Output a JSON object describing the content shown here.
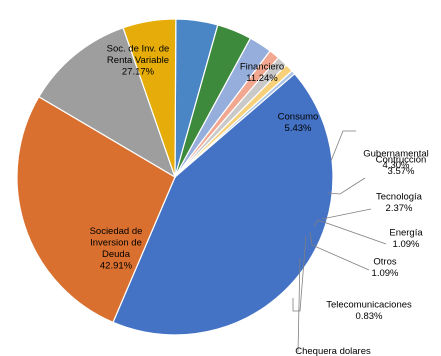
{
  "chart_data": {
    "type": "pie",
    "title": "",
    "start_angle_deg": 360.3,
    "slices": [
      {
        "name": "Gubernamental",
        "value": 4.3,
        "label": "4.30%",
        "color": "#4a86c5",
        "label_name": [
          "Gubernamental"
        ],
        "label_value": "4.30%"
      },
      {
        "name": "Contrucción",
        "value": 3.57,
        "label": "3.57%",
        "color": "#3d8a3d",
        "label_name": [
          "Contrucción"
        ],
        "label_value": "3.57%"
      },
      {
        "name": "Tecnología",
        "value": 2.37,
        "label": "2.37%",
        "color": "#96aedc",
        "label_name": [
          "Tecnología"
        ],
        "label_value": "2.37%"
      },
      {
        "name": "Energía",
        "value": 1.09,
        "label": "1.09%",
        "color": "#f2a890",
        "label_name": [
          "Energía"
        ],
        "label_value": "1.09%"
      },
      {
        "name": "Otros",
        "value": 1.09,
        "label": "1.09%",
        "color": "#c9c9c9",
        "label_name": [
          "Otros"
        ],
        "label_value": "1.09%"
      },
      {
        "name": "Telecomunicaciones",
        "value": 0.83,
        "label": "0.83%",
        "color": "#f7d07a",
        "label_name": [
          "Telecomunicaciones"
        ],
        "label_value": "0.83%"
      },
      {
        "name": "Chequera dolares",
        "value": 0.4,
        "label": "",
        "color": "#a9c4e6",
        "label_name": [
          "Chequera dolares"
        ],
        "label_value": ""
      },
      {
        "name": "Sociedad de Inversion de Deuda",
        "value": 42.91,
        "label": "42.91%",
        "color": "#4472c4",
        "label_name": [
          "Sociedad de",
          "Inversion de",
          "Deuda"
        ],
        "label_value": "42.91%"
      },
      {
        "name": "Soc. de Inv. de Renta Variable",
        "value": 27.17,
        "label": "27.17%",
        "color": "#d9702f",
        "label_name": [
          "Soc. de Inv. de",
          "Renta Variable"
        ],
        "label_value": "27.17%"
      },
      {
        "name": "Financiero",
        "value": 11.24,
        "label": "11.24%",
        "color": "#9e9e9e",
        "label_name": [
          "Financiero"
        ],
        "label_value": "11.24%"
      },
      {
        "name": "Consumo",
        "value": 5.43,
        "label": "5.43%",
        "color": "#e6ad0a",
        "label_name": [
          "Consumo"
        ],
        "label_value": "5.43%"
      }
    ]
  }
}
